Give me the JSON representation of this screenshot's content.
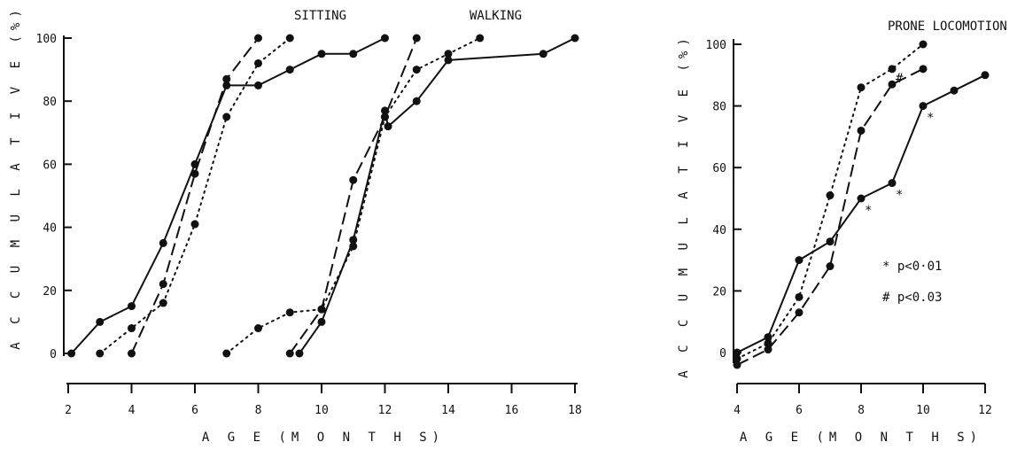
{
  "chart_data": [
    {
      "type": "line",
      "titles": [
        "SITTING",
        "WALKING"
      ],
      "xlabel": "A G E   (M O N T H S)",
      "ylabel": "A C C U M U L A T I V E   (%)",
      "xlim": [
        2,
        18
      ],
      "ylim": [
        0,
        100
      ],
      "xticks": [
        2,
        4,
        6,
        8,
        10,
        12,
        14,
        16,
        18
      ],
      "yticks": [
        0,
        20,
        40,
        60,
        80,
        100
      ],
      "series": [
        {
          "style": "solid",
          "x": [
            2.1,
            3,
            4,
            5,
            6,
            7,
            8,
            9,
            10,
            11,
            12
          ],
          "y": [
            0,
            10,
            15,
            35,
            60,
            85,
            85,
            90,
            95,
            95,
            100
          ]
        },
        {
          "style": "dashed",
          "x": [
            4,
            5,
            6,
            7,
            8
          ],
          "y": [
            0,
            22,
            57,
            87,
            100
          ]
        },
        {
          "style": "dotted",
          "x": [
            3,
            4,
            5,
            6,
            7,
            8,
            9
          ],
          "y": [
            0,
            8,
            16,
            41,
            75,
            92,
            100
          ]
        },
        {
          "style": "solid",
          "x": [
            9.3,
            10,
            11,
            12,
            12.1,
            13,
            14,
            17,
            18
          ],
          "y": [
            0,
            10,
            36,
            77,
            72,
            80,
            93,
            95,
            100
          ]
        },
        {
          "style": "dashed",
          "x": [
            9,
            10,
            11,
            12,
            13
          ],
          "y": [
            0,
            14,
            55,
            75,
            100
          ]
        },
        {
          "style": "dotted",
          "x": [
            7,
            8,
            9,
            10,
            11,
            12,
            13,
            14,
            15
          ],
          "y": [
            0,
            8,
            13,
            14,
            34,
            75,
            90,
            95,
            100
          ]
        }
      ]
    },
    {
      "type": "line",
      "title": "PRONE LOCOMOTION",
      "xlabel": "A G E   (M O N T H S)",
      "ylabel": "A C C U M U L A T I V E   (%)",
      "xlim": [
        4,
        12
      ],
      "ylim": [
        0,
        100
      ],
      "xticks": [
        4,
        6,
        8,
        10,
        12
      ],
      "yticks": [
        0,
        20,
        40,
        60,
        80,
        100
      ],
      "series": [
        {
          "style": "solid",
          "x": [
            4,
            5,
            6,
            7,
            8,
            9,
            10,
            11,
            12
          ],
          "y": [
            0,
            5,
            30,
            36,
            50,
            55,
            80,
            85,
            90
          ]
        },
        {
          "style": "dashed",
          "x": [
            4,
            5,
            6,
            7,
            8,
            9,
            10
          ],
          "y": [
            -4,
            1,
            13,
            28,
            72,
            87,
            92
          ]
        },
        {
          "style": "dotted",
          "x": [
            4,
            5,
            6,
            7,
            8,
            9,
            10
          ],
          "y": [
            -2,
            3,
            18,
            51,
            86,
            92,
            100
          ]
        }
      ],
      "annotations": [
        {
          "text": "*",
          "x": 8,
          "y": 50
        },
        {
          "text": "*",
          "x": 9,
          "y": 55
        },
        {
          "text": "*",
          "x": 10,
          "y": 80
        },
        {
          "text": "#",
          "x": 9,
          "y": 87
        }
      ],
      "legend": [
        "* p<0·01",
        "# p<0.03"
      ]
    }
  ]
}
